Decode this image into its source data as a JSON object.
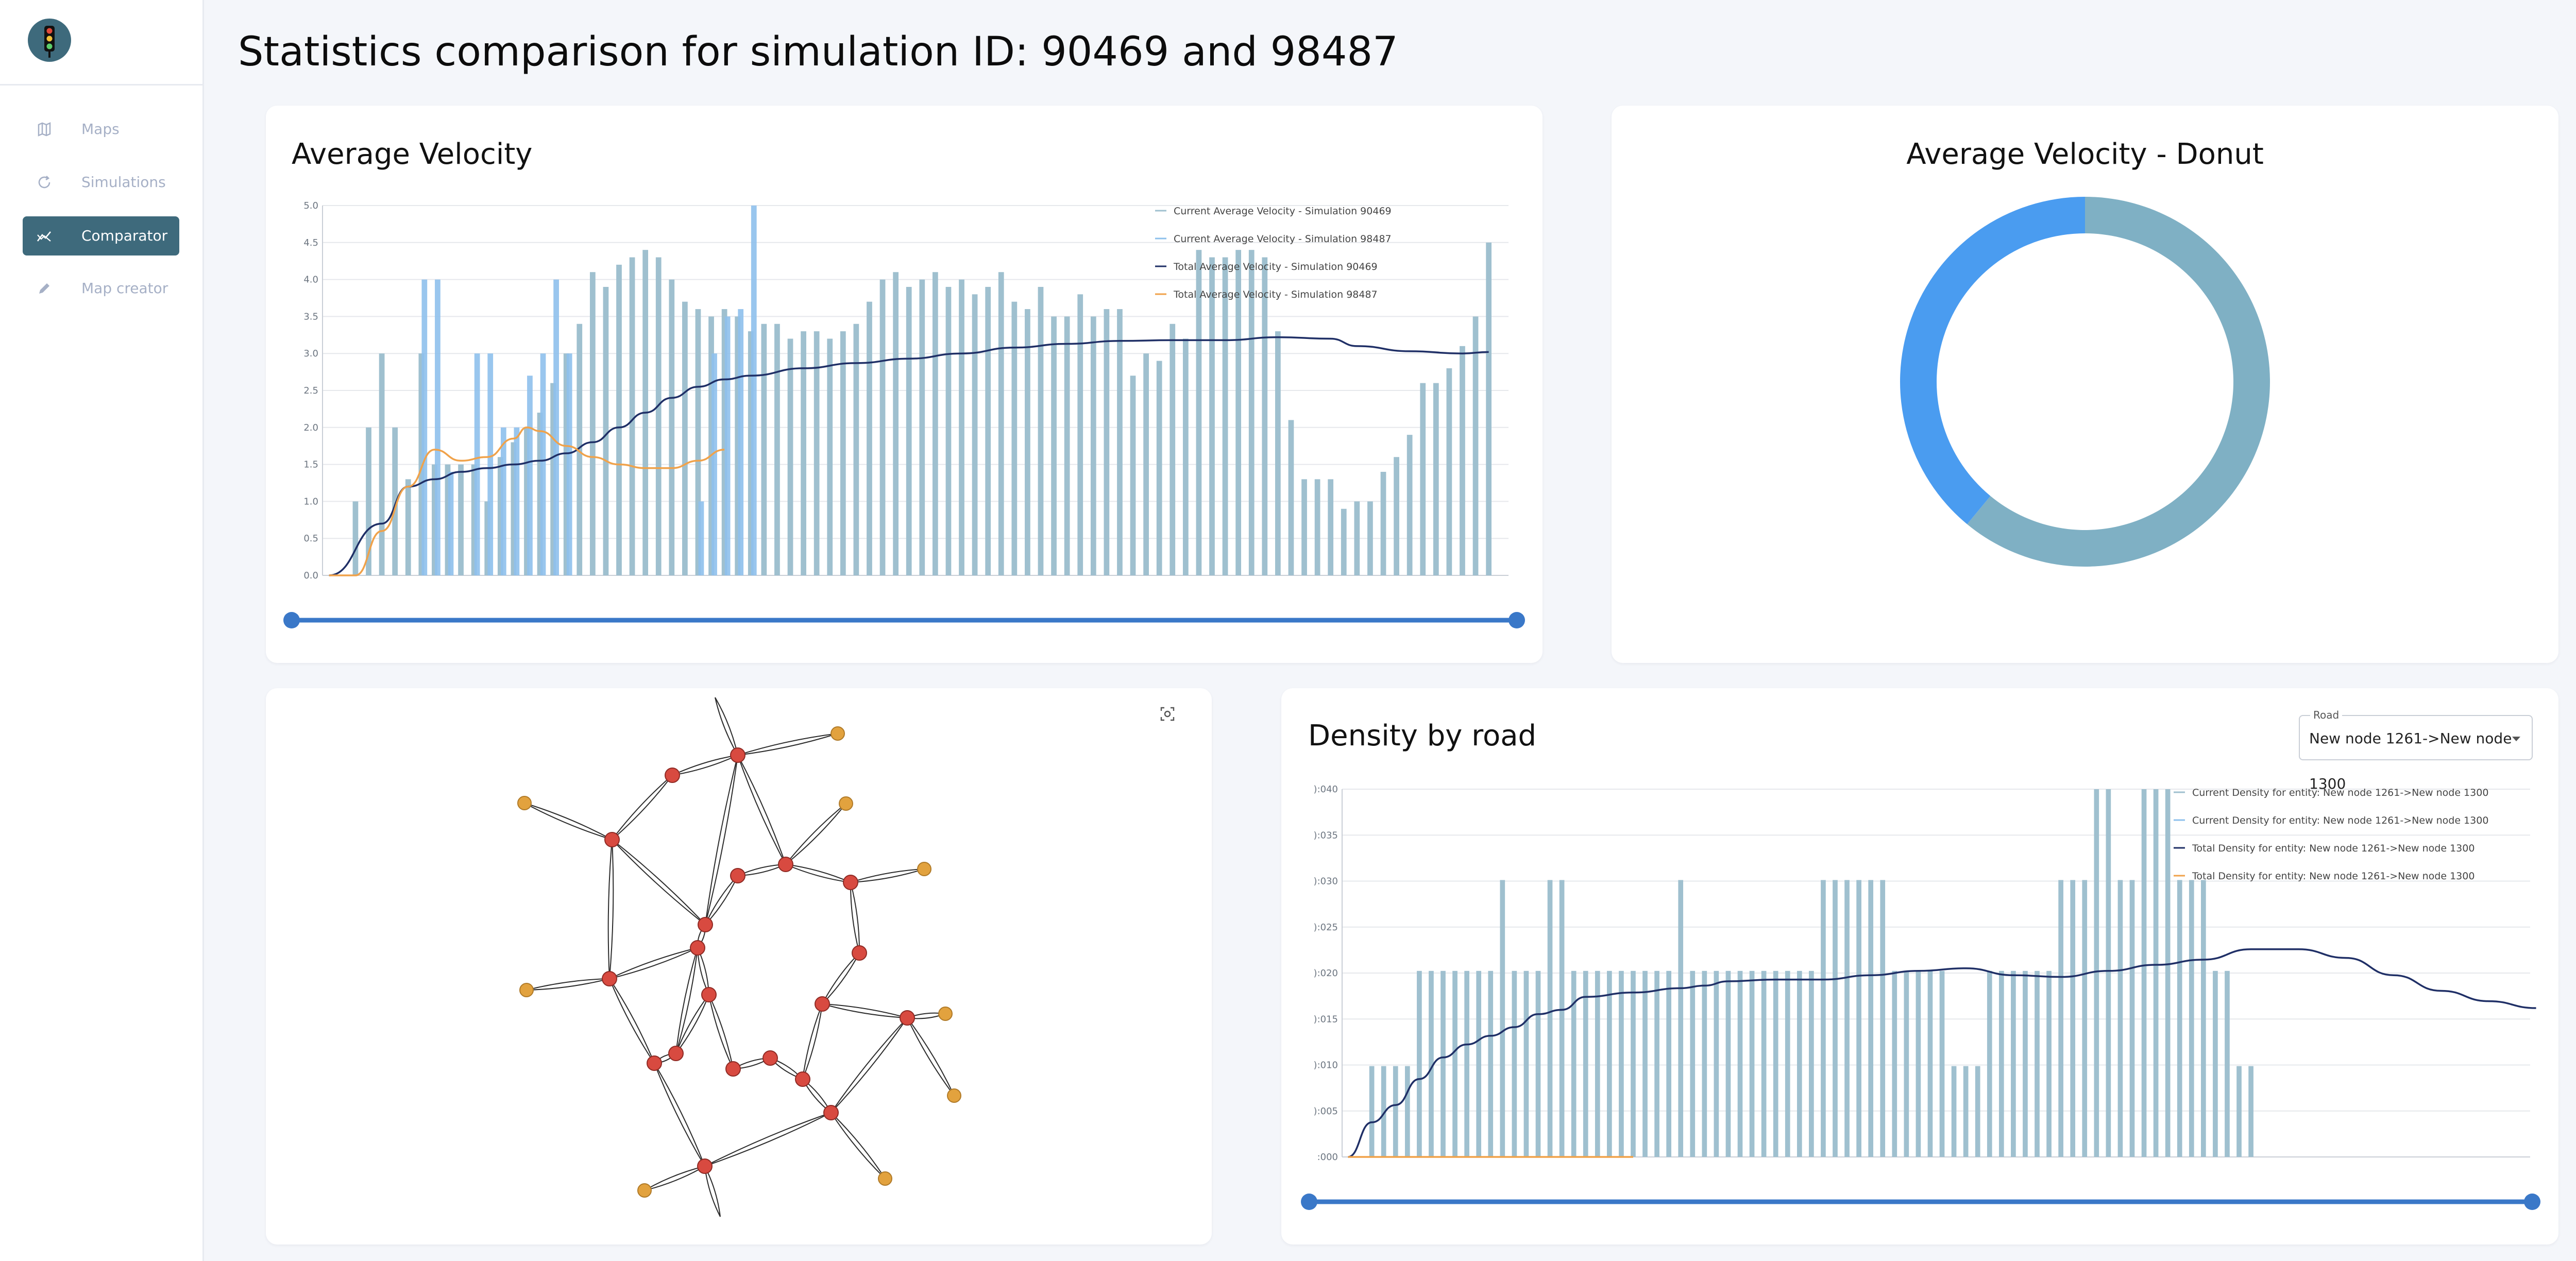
{
  "sidebar": {
    "items": [
      {
        "label": "Maps",
        "icon": "map-icon",
        "active": false
      },
      {
        "label": "Simulations",
        "icon": "refresh-icon",
        "active": false
      },
      {
        "label": "Comparator",
        "icon": "chart-compare-icon",
        "active": true
      },
      {
        "label": "Map creator",
        "icon": "pencil-icon",
        "active": false
      }
    ]
  },
  "page": {
    "title": "Statistics comparison for simulation ID: 90469 and 98487"
  },
  "colors": {
    "accent": "#3e6a7c",
    "bar_current_1": "#9fc0cf",
    "bar_current_2": "#8ec0ec",
    "line_total_1": "#1f2f66",
    "line_total_2": "#f0a24a",
    "donut_1": "#7fb0c4",
    "donut_2": "#4a9cf0",
    "graph_node_inner": "#d84a40",
    "graph_node_outer": "#e2a23e"
  },
  "velocity_card": {
    "title": "Average Velocity",
    "slider_range": [
      0,
      1
    ]
  },
  "donut_card": {
    "title": "Average Velocity - Donut"
  },
  "graph_card": {
    "fit_icon": "focus-frame-icon"
  },
  "density_card": {
    "title": "Density by road",
    "road_select_label": "Road",
    "road_select_value": "New node 1261->New node 1300",
    "slider_range": [
      0,
      1
    ]
  },
  "chart_data": [
    {
      "type": "bar",
      "title": "Average Velocity",
      "ylim": [
        0,
        5
      ],
      "yticks": [
        "0.0",
        "0.5",
        "1.0",
        "1.5",
        "2.0",
        "2.5",
        "3.0",
        "3.5",
        "4.0",
        "4.5",
        "5.0"
      ],
      "grid": true,
      "legend_position": "top-right",
      "series": [
        {
          "name": "Current Average Velocity - Simulation 90469",
          "kind": "bar",
          "values": [
            0,
            0,
            1,
            2,
            3,
            2,
            1.3,
            3,
            1.5,
            1.5,
            1.5,
            1.5,
            1,
            1.6,
            1.8,
            2,
            2.2,
            2.6,
            3,
            3.4,
            4.1,
            3.9,
            4.2,
            4.3,
            4.4,
            4.3,
            4,
            3.7,
            3.6,
            3.5,
            3.6,
            3.5,
            3.3,
            3.4,
            3.4,
            3.2,
            3.3,
            3.3,
            3.2,
            3.3,
            3.4,
            3.7,
            4,
            4.1,
            3.9,
            4,
            4.1,
            3.9,
            4,
            3.8,
            3.9,
            4.1,
            3.7,
            3.6,
            3.9,
            3.5,
            3.5,
            3.8,
            3.5,
            3.6,
            3.6,
            2.7,
            3,
            2.9,
            3.4,
            3.2,
            4.4,
            4.3,
            4.3,
            4.4,
            4.4,
            4.3,
            3.3,
            2.1,
            1.3,
            1.3,
            1.3,
            0.9,
            1,
            1,
            1.4,
            1.6,
            1.9,
            2.6,
            2.6,
            2.8,
            3.1,
            3.5,
            4.5
          ]
        },
        {
          "name": "Current Average Velocity - Simulation 98487",
          "kind": "bar",
          "values": [
            0,
            0,
            0,
            0,
            0,
            0,
            0,
            4,
            4,
            1.4,
            0,
            3,
            3,
            2,
            2,
            2.7,
            3,
            4,
            3,
            0,
            0,
            0,
            0,
            0,
            0,
            0,
            0,
            0,
            1,
            3,
            3.5,
            3.6,
            5
          ]
        },
        {
          "name": "Total Average Velocity - Simulation 90469",
          "kind": "line",
          "points": [
            [
              0,
              0
            ],
            [
              4,
              0.7
            ],
            [
              6,
              1.2
            ],
            [
              8,
              1.3
            ],
            [
              10,
              1.4
            ],
            [
              12,
              1.45
            ],
            [
              14,
              1.5
            ],
            [
              16,
              1.55
            ],
            [
              18,
              1.65
            ],
            [
              20,
              1.8
            ],
            [
              22,
              2.0
            ],
            [
              24,
              2.2
            ],
            [
              26,
              2.4
            ],
            [
              28,
              2.55
            ],
            [
              30,
              2.65
            ],
            [
              32,
              2.7
            ],
            [
              36,
              2.8
            ],
            [
              40,
              2.87
            ],
            [
              44,
              2.93
            ],
            [
              48,
              3.0
            ],
            [
              52,
              3.08
            ],
            [
              56,
              3.13
            ],
            [
              60,
              3.17
            ],
            [
              64,
              3.18
            ],
            [
              68,
              3.18
            ],
            [
              72,
              3.22
            ],
            [
              76,
              3.2
            ],
            [
              78,
              3.1
            ],
            [
              82,
              3.03
            ],
            [
              86,
              3.0
            ],
            [
              88,
              3.02
            ]
          ]
        },
        {
          "name": "Total Average Velocity - Simulation 98487",
          "kind": "line",
          "points": [
            [
              0,
              0
            ],
            [
              2,
              0
            ],
            [
              4,
              0.6
            ],
            [
              6,
              1.2
            ],
            [
              8,
              1.7
            ],
            [
              10,
              1.55
            ],
            [
              12,
              1.6
            ],
            [
              14,
              1.85
            ],
            [
              15,
              2.0
            ],
            [
              16,
              1.95
            ],
            [
              18,
              1.75
            ],
            [
              20,
              1.6
            ],
            [
              22,
              1.5
            ],
            [
              24,
              1.45
            ],
            [
              26,
              1.45
            ],
            [
              28,
              1.55
            ],
            [
              30,
              1.7
            ]
          ]
        }
      ]
    },
    {
      "type": "pie",
      "title": "Average Velocity - Donut",
      "series": [
        {
          "slices": [
            {
              "value": 0.61,
              "color": "#7fb0c4"
            },
            {
              "value": 0.39,
              "color": "#4a9cf0"
            }
          ]
        }
      ]
    },
    {
      "type": "bar",
      "title": "Density by road",
      "ylim": [
        0,
        0.0425
      ],
      "yticks": [
        ":000",
        "):005",
        "):010",
        "):015",
        "):020",
        "):025",
        "):030",
        "):035",
        "):040"
      ],
      "grid": true,
      "legend_position": "top-right",
      "series": [
        {
          "name": "Current Density for entity: New node 1261->New node 1300",
          "kind": "bar",
          "values": [
            0,
            0,
            0.0105,
            0.0105,
            0.0105,
            0.0105,
            0.0215,
            0.0215,
            0.0215,
            0.0215,
            0.0215,
            0.0215,
            0.0215,
            0.032,
            0.0215,
            0.0215,
            0.0215,
            0.032,
            0.032,
            0.0215,
            0.0215,
            0.0215,
            0.0215,
            0.0215,
            0.0215,
            0.0215,
            0.0215,
            0.0215,
            0.032,
            0.0215,
            0.0215,
            0.0215,
            0.0215,
            0.0215,
            0.0215,
            0.0215,
            0.0215,
            0.0215,
            0.0215,
            0.0215,
            0.032,
            0.032,
            0.032,
            0.032,
            0.032,
            0.032,
            0.0215,
            0.0215,
            0.0215,
            0.0215,
            0.0215,
            0.0105,
            0.0105,
            0.0105,
            0.0215,
            0.0215,
            0.0215,
            0.0215,
            0.0215,
            0.0215,
            0.032,
            0.032,
            0.032,
            0.0425,
            0.0425,
            0.032,
            0.032,
            0.0425,
            0.0425,
            0.0425,
            0.032,
            0.032,
            0.032,
            0.0215,
            0.0215,
            0.0105,
            0.0105
          ]
        },
        {
          "name": "Current Density for entity: New node 1261->New node 1300",
          "kind": "bar",
          "values": []
        },
        {
          "name": "Total Density for entity: New node 1261->New node 1300",
          "kind": "line",
          "points": [
            [
              0,
              0
            ],
            [
              2,
              0.004
            ],
            [
              4,
              0.006
            ],
            [
              6,
              0.009
            ],
            [
              8,
              0.0115
            ],
            [
              10,
              0.013
            ],
            [
              12,
              0.014
            ],
            [
              14,
              0.015
            ],
            [
              16,
              0.0165
            ],
            [
              18,
              0.017
            ],
            [
              20,
              0.0185
            ],
            [
              24,
              0.019
            ],
            [
              28,
              0.0195
            ],
            [
              30,
              0.0198
            ],
            [
              32,
              0.0203
            ],
            [
              36,
              0.0205
            ],
            [
              40,
              0.0205
            ],
            [
              44,
              0.021
            ],
            [
              48,
              0.0215
            ],
            [
              52,
              0.0218
            ],
            [
              56,
              0.021
            ],
            [
              60,
              0.0208
            ],
            [
              64,
              0.0215
            ],
            [
              68,
              0.0222
            ],
            [
              72,
              0.0228
            ],
            [
              76,
              0.024
            ],
            [
              80,
              0.024
            ],
            [
              84,
              0.023
            ],
            [
              88,
              0.021
            ],
            [
              92,
              0.0192
            ],
            [
              96,
              0.018
            ],
            [
              100,
              0.0172
            ]
          ]
        },
        {
          "name": "Total Density for entity: New node 1261->New node 1300",
          "kind": "line",
          "points": [
            [
              0,
              0
            ],
            [
              24,
              0
            ]
          ]
        }
      ]
    }
  ],
  "road_graph": {
    "inner_nodes": [
      [
        1432,
        1466
      ],
      [
        1305,
        1505
      ],
      [
        1188,
        1630
      ],
      [
        1432,
        1700
      ],
      [
        1525,
        1678
      ],
      [
        1651,
        1713
      ],
      [
        1369,
        1795
      ],
      [
        1668,
        1850
      ],
      [
        1354,
        1840
      ],
      [
        1183,
        1900
      ],
      [
        1376,
        1931
      ],
      [
        1596,
        1949
      ],
      [
        1761,
        1976
      ],
      [
        1312,
        2045
      ],
      [
        1270,
        2064
      ],
      [
        1423,
        2075
      ],
      [
        1495,
        2054
      ],
      [
        1558,
        2095
      ],
      [
        1613,
        2160
      ],
      [
        1368,
        2264
      ]
    ],
    "outer_nodes": [
      [
        1626,
        1424
      ],
      [
        1018,
        1559
      ],
      [
        1642,
        1560
      ],
      [
        1794,
        1687
      ],
      [
        1022,
        1922
      ],
      [
        1835,
        1968
      ],
      [
        1852,
        2127
      ],
      [
        1251,
        2311
      ],
      [
        1718,
        2288
      ]
    ]
  }
}
